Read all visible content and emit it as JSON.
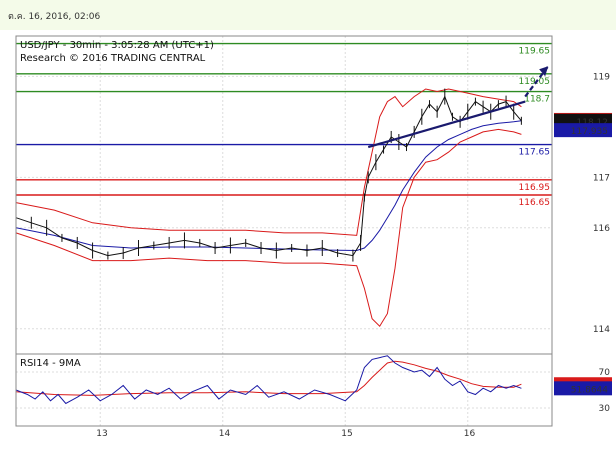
{
  "header": {
    "date": "ต.ค. 16, 2016, 02:06"
  },
  "chart_data": [
    {
      "type": "line",
      "title": "USD/JPY - 30min - 3:05:28 AM (UTC+1)",
      "subtitle": "Research © 2016 TRADING CENTRAL",
      "x_ticks": [
        "13",
        "14",
        "15",
        "16"
      ],
      "y_ticks": [
        114,
        116,
        117,
        119
      ],
      "ylim": [
        113.5,
        119.8
      ],
      "grid": true,
      "levels": [
        {
          "label": "119.65",
          "value": 119.65,
          "color": "#2e8b22"
        },
        {
          "label": "119.05",
          "value": 119.05,
          "color": "#2e8b22"
        },
        {
          "label": "118.7",
          "value": 118.7,
          "color": "#2e8b22"
        },
        {
          "label": "117.65",
          "value": 117.65,
          "color": "#1a1aa6"
        },
        {
          "label": "116.95",
          "value": 116.95,
          "color": "#d91a1a"
        },
        {
          "label": "116.65",
          "value": 116.65,
          "color": "#d91a1a"
        }
      ],
      "price_flags": [
        {
          "label": "118.137",
          "value": 118.137,
          "color": "#d91a1a"
        },
        {
          "label": "118.12",
          "value": 118.12,
          "color": "#111111"
        },
        {
          "label": "117.935",
          "value": 117.935,
          "color": "#1a1aa6"
        }
      ],
      "price_series": [
        [
          0,
          116.2
        ],
        [
          4,
          116.1
        ],
        [
          8,
          116.0
        ],
        [
          12,
          115.8
        ],
        [
          16,
          115.7
        ],
        [
          20,
          115.55
        ],
        [
          24,
          115.45
        ],
        [
          28,
          115.5
        ],
        [
          32,
          115.6
        ],
        [
          36,
          115.65
        ],
        [
          40,
          115.7
        ],
        [
          44,
          115.75
        ],
        [
          48,
          115.7
        ],
        [
          52,
          115.6
        ],
        [
          56,
          115.65
        ],
        [
          60,
          115.7
        ],
        [
          64,
          115.6
        ],
        [
          68,
          115.55
        ],
        [
          72,
          115.6
        ],
        [
          76,
          115.55
        ],
        [
          80,
          115.6
        ],
        [
          84,
          115.5
        ],
        [
          88,
          115.45
        ],
        [
          90,
          115.7
        ],
        [
          91,
          116.6
        ],
        [
          92,
          117.0
        ],
        [
          94,
          117.3
        ],
        [
          96,
          117.55
        ],
        [
          98,
          117.8
        ],
        [
          100,
          117.7
        ],
        [
          102,
          117.6
        ],
        [
          104,
          117.9
        ],
        [
          106,
          118.2
        ],
        [
          108,
          118.45
        ],
        [
          110,
          118.3
        ],
        [
          112,
          118.6
        ],
        [
          114,
          118.2
        ],
        [
          116,
          118.1
        ],
        [
          118,
          118.3
        ],
        [
          120,
          118.5
        ],
        [
          122,
          118.4
        ],
        [
          124,
          118.3
        ],
        [
          126,
          118.45
        ],
        [
          128,
          118.5
        ],
        [
          130,
          118.3
        ],
        [
          132,
          118.12
        ]
      ],
      "upper_band": [
        [
          0,
          116.5
        ],
        [
          10,
          116.35
        ],
        [
          20,
          116.1
        ],
        [
          30,
          116.0
        ],
        [
          40,
          115.95
        ],
        [
          50,
          115.95
        ],
        [
          60,
          115.95
        ],
        [
          70,
          115.9
        ],
        [
          80,
          115.9
        ],
        [
          89,
          115.85
        ],
        [
          91,
          116.8
        ],
        [
          93,
          117.5
        ],
        [
          95,
          118.2
        ],
        [
          97,
          118.5
        ],
        [
          99,
          118.6
        ],
        [
          101,
          118.4
        ],
        [
          104,
          118.6
        ],
        [
          107,
          118.75
        ],
        [
          110,
          118.7
        ],
        [
          113,
          118.75
        ],
        [
          116,
          118.7
        ],
        [
          119,
          118.65
        ],
        [
          122,
          118.6
        ],
        [
          126,
          118.55
        ],
        [
          130,
          118.5
        ],
        [
          132,
          118.4
        ]
      ],
      "lower_band": [
        [
          0,
          115.9
        ],
        [
          10,
          115.65
        ],
        [
          20,
          115.35
        ],
        [
          30,
          115.35
        ],
        [
          40,
          115.4
        ],
        [
          50,
          115.35
        ],
        [
          60,
          115.35
        ],
        [
          70,
          115.3
        ],
        [
          80,
          115.3
        ],
        [
          89,
          115.25
        ],
        [
          91,
          114.8
        ],
        [
          93,
          114.2
        ],
        [
          95,
          114.05
        ],
        [
          97,
          114.3
        ],
        [
          99,
          115.2
        ],
        [
          101,
          116.4
        ],
        [
          104,
          117.0
        ],
        [
          107,
          117.3
        ],
        [
          110,
          117.35
        ],
        [
          113,
          117.5
        ],
        [
          116,
          117.7
        ],
        [
          119,
          117.8
        ],
        [
          122,
          117.9
        ],
        [
          126,
          117.95
        ],
        [
          130,
          117.9
        ],
        [
          132,
          117.85
        ]
      ],
      "ma_series": [
        [
          0,
          116.0
        ],
        [
          10,
          115.85
        ],
        [
          20,
          115.65
        ],
        [
          30,
          115.6
        ],
        [
          40,
          115.62
        ],
        [
          50,
          115.62
        ],
        [
          60,
          115.6
        ],
        [
          70,
          115.58
        ],
        [
          80,
          115.56
        ],
        [
          89,
          115.55
        ],
        [
          91,
          115.6
        ],
        [
          93,
          115.75
        ],
        [
          95,
          115.95
        ],
        [
          97,
          116.2
        ],
        [
          99,
          116.45
        ],
        [
          101,
          116.75
        ],
        [
          104,
          117.1
        ],
        [
          107,
          117.4
        ],
        [
          110,
          117.6
        ],
        [
          113,
          117.75
        ],
        [
          116,
          117.85
        ],
        [
          119,
          117.95
        ],
        [
          122,
          118.02
        ],
        [
          126,
          118.07
        ],
        [
          130,
          118.1
        ],
        [
          132,
          118.12
        ]
      ],
      "trend_lines": [
        {
          "from": [
            92,
            117.6
          ],
          "to": [
            133,
            118.5
          ]
        },
        {
          "from": [
            133,
            118.6
          ],
          "to": [
            139,
            119.2
          ],
          "dashed": true
        }
      ]
    },
    {
      "type": "line",
      "title": "RSI14 - 9MA",
      "ylim": [
        10,
        90
      ],
      "y_ticks": [
        30,
        70
      ],
      "flags": [
        {
          "label": "56.4047",
          "value": 56.4047,
          "color": "#d91a1a"
        },
        {
          "label": "51.8644",
          "value": 51.8644,
          "color": "#1a1aa6"
        }
      ],
      "rsi_series": [
        [
          0,
          50
        ],
        [
          3,
          45
        ],
        [
          5,
          40
        ],
        [
          7,
          48
        ],
        [
          9,
          38
        ],
        [
          11,
          45
        ],
        [
          13,
          35
        ],
        [
          16,
          42
        ],
        [
          19,
          50
        ],
        [
          22,
          38
        ],
        [
          25,
          45
        ],
        [
          28,
          55
        ],
        [
          31,
          40
        ],
        [
          34,
          50
        ],
        [
          37,
          45
        ],
        [
          40,
          52
        ],
        [
          43,
          40
        ],
        [
          46,
          48
        ],
        [
          50,
          55
        ],
        [
          53,
          40
        ],
        [
          56,
          50
        ],
        [
          60,
          45
        ],
        [
          63,
          55
        ],
        [
          66,
          42
        ],
        [
          70,
          48
        ],
        [
          74,
          40
        ],
        [
          78,
          50
        ],
        [
          82,
          45
        ],
        [
          86,
          38
        ],
        [
          89,
          50
        ],
        [
          91,
          75
        ],
        [
          93,
          84
        ],
        [
          95,
          86
        ],
        [
          97,
          88
        ],
        [
          99,
          80
        ],
        [
          101,
          75
        ],
        [
          104,
          70
        ],
        [
          106,
          72
        ],
        [
          108,
          65
        ],
        [
          110,
          75
        ],
        [
          112,
          62
        ],
        [
          114,
          55
        ],
        [
          116,
          60
        ],
        [
          118,
          48
        ],
        [
          120,
          45
        ],
        [
          122,
          52
        ],
        [
          124,
          48
        ],
        [
          126,
          55
        ],
        [
          128,
          52
        ],
        [
          130,
          55
        ],
        [
          132,
          51.86
        ]
      ],
      "ma_series": [
        [
          0,
          48
        ],
        [
          10,
          45
        ],
        [
          20,
          44
        ],
        [
          30,
          46
        ],
        [
          40,
          47
        ],
        [
          50,
          47
        ],
        [
          60,
          48
        ],
        [
          70,
          46
        ],
        [
          80,
          46
        ],
        [
          89,
          48
        ],
        [
          91,
          55
        ],
        [
          93,
          64
        ],
        [
          95,
          72
        ],
        [
          97,
          80
        ],
        [
          99,
          82
        ],
        [
          101,
          81
        ],
        [
          104,
          78
        ],
        [
          107,
          74
        ],
        [
          110,
          71
        ],
        [
          113,
          66
        ],
        [
          116,
          62
        ],
        [
          119,
          57
        ],
        [
          122,
          54
        ],
        [
          126,
          53
        ],
        [
          130,
          53
        ],
        [
          132,
          56.4
        ]
      ]
    }
  ]
}
